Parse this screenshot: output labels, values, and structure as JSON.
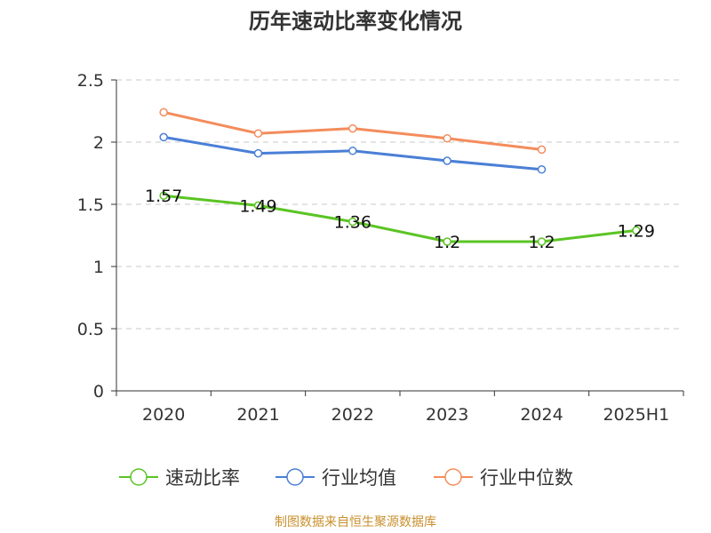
{
  "colors": {
    "series_1": "#5bc424",
    "series_2": "#4a7fd6",
    "series_3": "#f48c5c",
    "axis": "#333333",
    "grid": "#c8c8c8",
    "source": "#c8902e"
  },
  "source": "制图数据来自恒生聚源数据库",
  "chart_data": {
    "type": "line",
    "title": "历年速动比率变化情况",
    "categories": [
      "2020",
      "2021",
      "2022",
      "2023",
      "2024",
      "2025H1"
    ],
    "ylim": [
      0,
      2.5
    ],
    "yticks": [
      "0",
      "0.5",
      "1",
      "1.5",
      "2",
      "2.5"
    ],
    "grid": "horizontal-dashed",
    "legend_position": "bottom",
    "series": [
      {
        "name": "速动比率",
        "values": [
          1.57,
          1.49,
          1.36,
          1.2,
          1.2,
          1.29
        ],
        "labels": [
          "1.57",
          "1.49",
          "1.36",
          "1.2",
          "1.2",
          "1.29"
        ]
      },
      {
        "name": "行业均值",
        "values": [
          2.04,
          1.91,
          1.93,
          1.85,
          1.78,
          null
        ]
      },
      {
        "name": "行业中位数",
        "values": [
          2.24,
          2.07,
          2.11,
          2.03,
          1.94,
          null
        ]
      }
    ]
  }
}
